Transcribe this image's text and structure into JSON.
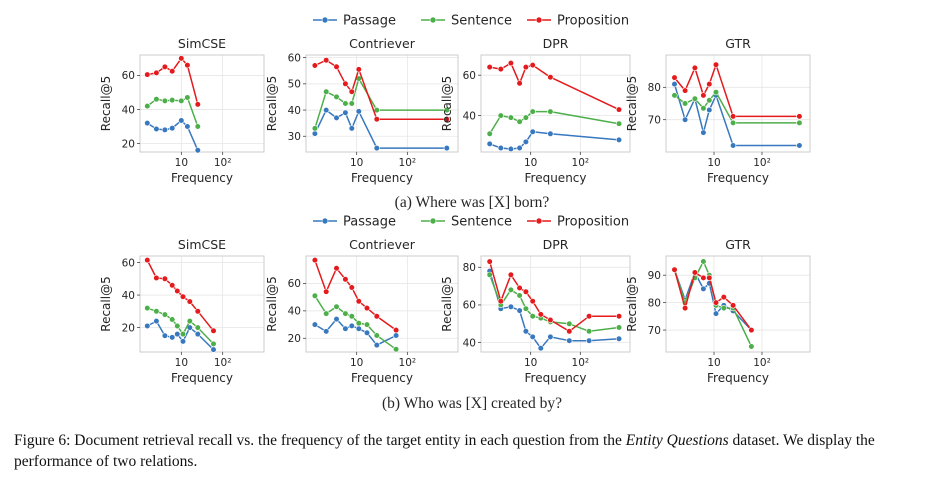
{
  "legend_items": [
    {
      "name": "Passage",
      "color": "#3778bf"
    },
    {
      "name": "Sentence",
      "color": "#4daf4a"
    },
    {
      "name": "Proposition",
      "color": "#e41a1c"
    }
  ],
  "sublabels": [
    "(a) Where was [X] born?",
    "(b) Who was [X] created by?"
  ],
  "caption": {
    "prefix": "Figure 6: Document retrieval recall vs. the frequency of the target entity in each question from the",
    "emph": "Entity Questions",
    "suffix": "dataset. We display the performance of two relations."
  },
  "chart_data": [
    {
      "type": "line",
      "title": "SimCSE",
      "xlabel": "Frequency",
      "ylabel": "Recall@5",
      "x": [
        1.5,
        2.5,
        4,
        6,
        10,
        14,
        25,
        600
      ],
      "xscale": "log",
      "xlim": [
        1,
        1000
      ],
      "ylim": [
        15,
        72
      ],
      "xticks": [
        {
          "value": 10,
          "label": "10"
        },
        {
          "value": 100,
          "label": "10²"
        }
      ],
      "yticks": [
        20,
        40,
        60
      ],
      "grid": true,
      "series": [
        {
          "name": "Passage",
          "values": [
            32,
            28.5,
            28,
            29,
            33.5,
            30,
            16,
            null
          ]
        },
        {
          "name": "Sentence",
          "values": [
            42,
            46,
            45,
            45.5,
            45,
            47,
            30,
            null
          ]
        },
        {
          "name": "Proposition",
          "values": [
            60.5,
            61.5,
            65,
            62.5,
            70,
            66,
            43,
            null
          ]
        }
      ]
    },
    {
      "type": "line",
      "title": "Contriever",
      "xlabel": "Frequency",
      "ylabel": "Recall@5",
      "x": [
        1.5,
        2.5,
        4,
        6,
        8,
        11,
        25,
        600
      ],
      "xscale": "log",
      "xlim": [
        1,
        1000
      ],
      "ylim": [
        24,
        61
      ],
      "xticks": [
        {
          "value": 10,
          "label": "10"
        },
        {
          "value": 100,
          "label": "10²"
        }
      ],
      "yticks": [
        30,
        40,
        50,
        60
      ],
      "grid": true,
      "series": [
        {
          "name": "Passage",
          "values": [
            31,
            40,
            37,
            39,
            33,
            39.5,
            25.5,
            25.5
          ]
        },
        {
          "name": "Sentence",
          "values": [
            33,
            47,
            45,
            42.5,
            42.5,
            52,
            40,
            40
          ]
        },
        {
          "name": "Proposition",
          "values": [
            57,
            59,
            56.5,
            50,
            47,
            55.5,
            36.5,
            36.5
          ]
        }
      ]
    },
    {
      "type": "line",
      "title": "DPR",
      "xlabel": "Frequency",
      "ylabel": "Recall@5",
      "x": [
        1.5,
        2.5,
        4,
        6,
        8,
        11,
        25,
        600
      ],
      "xscale": "log",
      "xlim": [
        1,
        1000
      ],
      "ylim": [
        22,
        70
      ],
      "xticks": [
        {
          "value": 10,
          "label": "10"
        },
        {
          "value": 100,
          "label": "10²"
        }
      ],
      "yticks": [
        40,
        60
      ],
      "grid": true,
      "series": [
        {
          "name": "Passage",
          "values": [
            26,
            24,
            23.5,
            24,
            27,
            32,
            31,
            28
          ]
        },
        {
          "name": "Sentence",
          "values": [
            31,
            40,
            39,
            37,
            39,
            42,
            42,
            36
          ]
        },
        {
          "name": "Proposition",
          "values": [
            64,
            63,
            66,
            56,
            64,
            65,
            59,
            43
          ]
        }
      ]
    },
    {
      "type": "line",
      "title": "GTR",
      "xlabel": "Frequency",
      "ylabel": "Recall@5",
      "x": [
        1.5,
        2.5,
        4,
        6,
        8,
        11,
        25,
        600
      ],
      "xscale": "log",
      "xlim": [
        1,
        1000
      ],
      "ylim": [
        60,
        90
      ],
      "xticks": [
        {
          "value": 10,
          "label": "10"
        },
        {
          "value": 100,
          "label": "10²"
        }
      ],
      "yticks": [
        70,
        80
      ],
      "grid": true,
      "series": [
        {
          "name": "Passage",
          "values": [
            81,
            70,
            76.5,
            66,
            73,
            77.5,
            62,
            62
          ]
        },
        {
          "name": "Sentence",
          "values": [
            77.5,
            75,
            76.5,
            73.5,
            76,
            78.5,
            69,
            69
          ]
        },
        {
          "name": "Proposition",
          "values": [
            83,
            79,
            86,
            77.5,
            81,
            87,
            71,
            71
          ]
        }
      ]
    },
    {
      "type": "line",
      "title": "SimCSE",
      "xlabel": "Frequency",
      "ylabel": "Recall@5",
      "x": [
        1.5,
        2.5,
        4,
        6,
        8,
        11,
        16,
        25,
        60,
        150,
        600
      ],
      "xscale": "log",
      "xlim": [
        1,
        1000
      ],
      "ylim": [
        5,
        64
      ],
      "xticks": [
        {
          "value": 10,
          "label": "10"
        },
        {
          "value": 100,
          "label": "10²"
        }
      ],
      "yticks": [
        20,
        40,
        60
      ],
      "grid": true,
      "series": [
        {
          "name": "Passage",
          "values": [
            21,
            24,
            15,
            14,
            16,
            11.5,
            20,
            16,
            6.5,
            null,
            null
          ]
        },
        {
          "name": "Sentence",
          "values": [
            32,
            30,
            28,
            25,
            21,
            16,
            24,
            20,
            10,
            null,
            null
          ]
        },
        {
          "name": "Proposition",
          "values": [
            61.5,
            50.5,
            50,
            46,
            42.5,
            39,
            36,
            30,
            18,
            null,
            null
          ]
        }
      ]
    },
    {
      "type": "line",
      "title": "Contriever",
      "xlabel": "Frequency",
      "ylabel": "Recall@5",
      "x": [
        1.5,
        2.5,
        4,
        6,
        8,
        11,
        16,
        25,
        60,
        150,
        600
      ],
      "xscale": "log",
      "xlim": [
        1,
        1000
      ],
      "ylim": [
        10,
        80
      ],
      "xticks": [
        {
          "value": 10,
          "label": "10"
        },
        {
          "value": 100,
          "label": "10²"
        }
      ],
      "yticks": [
        20,
        40,
        60
      ],
      "grid": true,
      "series": [
        {
          "name": "Passage",
          "values": [
            30,
            25,
            34,
            27,
            29,
            27,
            24,
            15,
            22,
            null,
            null
          ]
        },
        {
          "name": "Sentence",
          "values": [
            51,
            38,
            43,
            38,
            36,
            31,
            30,
            22,
            12,
            null,
            null
          ]
        },
        {
          "name": "Proposition",
          "values": [
            77,
            54,
            71,
            63,
            57,
            47,
            42,
            36,
            26,
            null,
            null
          ]
        }
      ]
    },
    {
      "type": "line",
      "title": "DPR",
      "xlabel": "Frequency",
      "ylabel": "Recall@5",
      "x": [
        1.5,
        2.5,
        4,
        6,
        8,
        11,
        16,
        25,
        60,
        150,
        600
      ],
      "xscale": "log",
      "xlim": [
        1,
        1000
      ],
      "ylim": [
        35,
        86
      ],
      "xticks": [
        {
          "value": 10,
          "label": "10"
        },
        {
          "value": 100,
          "label": "10²"
        }
      ],
      "yticks": [
        40,
        60,
        80
      ],
      "grid": true,
      "series": [
        {
          "name": "Passage",
          "values": [
            78,
            58,
            59,
            57,
            46,
            43,
            37,
            43,
            41,
            41,
            42
          ]
        },
        {
          "name": "Sentence",
          "values": [
            76,
            60,
            68,
            65,
            58,
            54,
            53,
            51,
            50,
            46,
            48
          ]
        },
        {
          "name": "Proposition",
          "values": [
            83,
            62,
            76,
            69,
            67,
            62,
            55,
            52,
            46,
            54,
            54
          ]
        }
      ]
    },
    {
      "type": "line",
      "title": "GTR",
      "xlabel": "Frequency",
      "ylabel": "Recall@5",
      "x": [
        1.5,
        2.5,
        4,
        6,
        8,
        11,
        16,
        25,
        60,
        150,
        600
      ],
      "xscale": "log",
      "xlim": [
        1,
        1000
      ],
      "ylim": [
        62,
        97
      ],
      "xticks": [
        {
          "value": 10,
          "label": "10"
        },
        {
          "value": 100,
          "label": "10²"
        }
      ],
      "yticks": [
        70,
        80,
        90
      ],
      "grid": true,
      "series": [
        {
          "name": "Passage",
          "values": [
            92,
            81,
            91,
            85,
            87,
            76,
            79,
            77,
            70,
            null,
            null
          ]
        },
        {
          "name": "Sentence",
          "values": [
            92,
            80,
            89,
            95,
            90,
            79,
            78,
            78,
            64,
            null,
            null
          ]
        },
        {
          "name": "Proposition",
          "values": [
            92,
            78,
            91,
            89,
            89,
            80,
            82,
            79,
            70,
            null,
            null
          ]
        }
      ]
    }
  ]
}
